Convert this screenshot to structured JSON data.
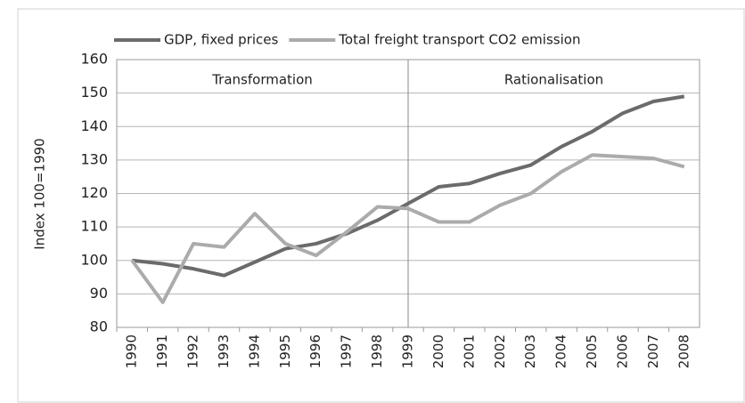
{
  "chart_data": {
    "type": "line",
    "y_label": "Index 100=1990",
    "categories": [
      "1990",
      "1991",
      "1992",
      "1993",
      "1994",
      "1995",
      "1996",
      "1997",
      "1998",
      "1999",
      "2000",
      "2001",
      "2002",
      "2003",
      "2004",
      "2005",
      "2006",
      "2007",
      "2008"
    ],
    "series": [
      {
        "name": "GDP, fixed prices",
        "color": "#6b6b6b",
        "values": [
          100,
          99,
          97.5,
          95.5,
          99.5,
          103.5,
          105,
          108,
          112,
          117,
          122,
          123,
          126,
          128.5,
          134,
          138.5,
          144,
          147.5,
          149
        ]
      },
      {
        "name": "Total freight transport CO2 emission",
        "color": "#ababab",
        "values": [
          100,
          87.5,
          105,
          104,
          114,
          105,
          101.5,
          108.5,
          116,
          115.5,
          111.5,
          111.5,
          116.5,
          120,
          126.5,
          131.5,
          131,
          130.5,
          128
        ]
      }
    ],
    "phases": [
      {
        "label": "Transformation",
        "start": "1990"
      },
      {
        "label": "Rationalisation",
        "start": "1999"
      }
    ],
    "ylim": [
      80,
      160
    ],
    "yticks": [
      80,
      90,
      100,
      110,
      120,
      130,
      140,
      150,
      160
    ],
    "grid": true,
    "legend": "top"
  }
}
